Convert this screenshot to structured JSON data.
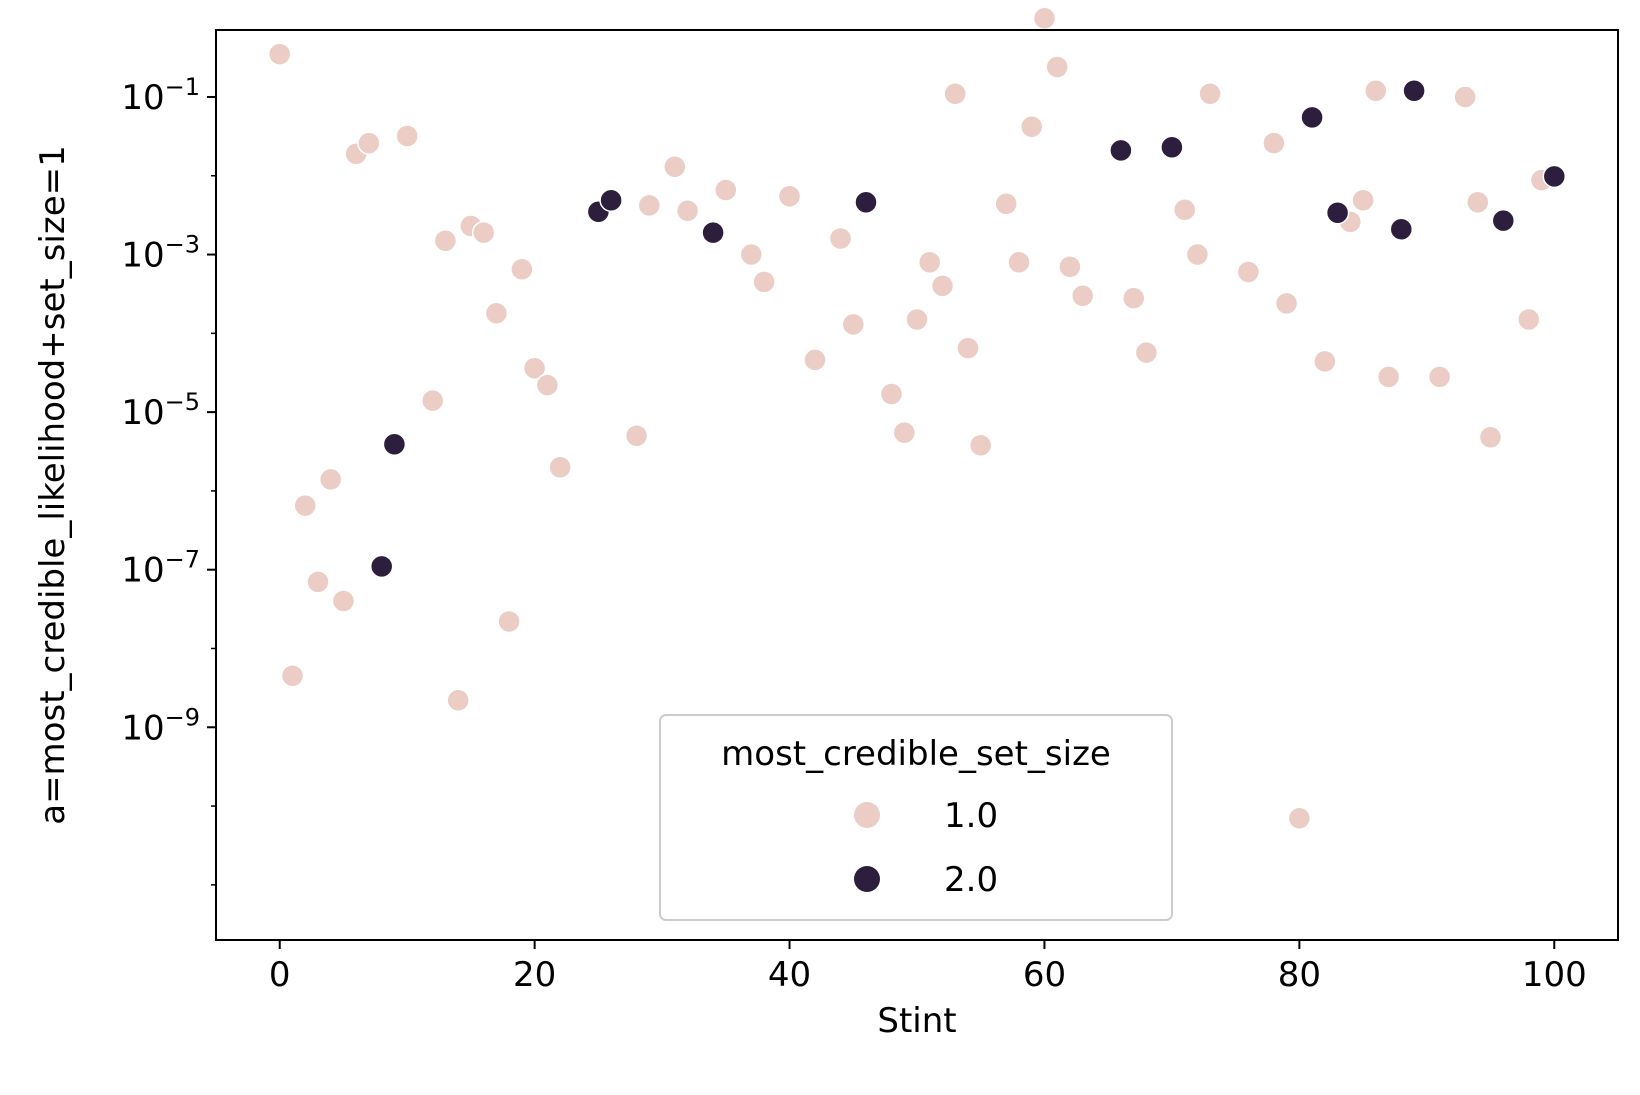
{
  "chart_data": {
    "type": "scatter",
    "title": "",
    "xlabel": "Stint",
    "ylabel": "a=most_credible_likelihood+set_size=1",
    "xlim": [
      -5,
      105
    ],
    "ylim_log10": [
      -11.7,
      -0.15
    ],
    "y_scale": "log",
    "x_ticks": [
      0,
      20,
      40,
      60,
      80,
      100
    ],
    "y_ticks": [
      {
        "exp": -9,
        "base": "10",
        "label": "−9"
      },
      {
        "exp": -7,
        "base": "10",
        "label": "−7"
      },
      {
        "exp": -5,
        "base": "10",
        "label": "−5"
      },
      {
        "exp": -3,
        "base": "10",
        "label": "−3"
      },
      {
        "exp": -1,
        "base": "10",
        "label": "−1"
      }
    ],
    "grid": false,
    "legend": {
      "title": "most_credible_set_size",
      "placement": "lower-center",
      "entries": [
        {
          "label": "1.0",
          "color": "#ebcdc5"
        },
        {
          "label": "2.0",
          "color": "#2d1e3e"
        }
      ]
    },
    "series": [
      {
        "name": "1.0",
        "color": "#ebcdc5",
        "points": [
          [
            0,
            0.35
          ],
          [
            1,
            4.5e-09
          ],
          [
            2,
            6.5e-07
          ],
          [
            3,
            7e-08
          ],
          [
            4,
            1.4e-06
          ],
          [
            5,
            4e-08
          ],
          [
            6,
            0.019
          ],
          [
            7,
            0.026
          ],
          [
            10,
            0.032
          ],
          [
            12,
            1.4e-05
          ],
          [
            13,
            0.0015
          ],
          [
            14,
            2.2e-09
          ],
          [
            15,
            0.0023
          ],
          [
            16,
            0.0019
          ],
          [
            17,
            0.00018
          ],
          [
            18,
            2.2e-08
          ],
          [
            19,
            0.00065
          ],
          [
            20,
            3.6e-05
          ],
          [
            21,
            2.2e-05
          ],
          [
            22,
            2e-06
          ],
          [
            28,
            5e-06
          ],
          [
            29,
            0.0042
          ],
          [
            31,
            0.013
          ],
          [
            32,
            0.0036
          ],
          [
            35,
            0.0066
          ],
          [
            37,
            0.001
          ],
          [
            38,
            0.00045
          ],
          [
            40,
            0.0055
          ],
          [
            42,
            4.6e-05
          ],
          [
            44,
            0.0016
          ],
          [
            45,
            0.00013
          ],
          [
            48,
            1.7e-05
          ],
          [
            49,
            5.5e-06
          ],
          [
            50,
            0.00015
          ],
          [
            51,
            0.0008
          ],
          [
            52,
            0.0004
          ],
          [
            53,
            0.11
          ],
          [
            54,
            6.5e-05
          ],
          [
            55,
            3.8e-06
          ],
          [
            57,
            0.0044
          ],
          [
            58,
            0.0008
          ],
          [
            59,
            0.042
          ],
          [
            60,
            1.0
          ],
          [
            61,
            0.24
          ],
          [
            62,
            0.0007
          ],
          [
            63,
            0.0003
          ],
          [
            67,
            0.00028
          ],
          [
            68,
            5.7e-05
          ],
          [
            71,
            0.0037
          ],
          [
            72,
            0.001
          ],
          [
            73,
            0.11
          ],
          [
            76,
            0.0006
          ],
          [
            78,
            0.026
          ],
          [
            79,
            0.00024
          ],
          [
            80,
            7e-11
          ],
          [
            82,
            4.4e-05
          ],
          [
            84,
            0.0026
          ],
          [
            85,
            0.0049
          ],
          [
            86,
            0.12
          ],
          [
            87,
            2.8e-05
          ],
          [
            91,
            2.8e-05
          ],
          [
            93,
            0.1
          ],
          [
            94,
            0.0046
          ],
          [
            95,
            4.8e-06
          ],
          [
            98,
            0.00015
          ],
          [
            99,
            0.0088
          ]
        ]
      },
      {
        "name": "2.0",
        "color": "#2d1e3e",
        "points": [
          [
            8,
            1.1e-07
          ],
          [
            9,
            3.9e-06
          ],
          [
            25,
            0.0035
          ],
          [
            26,
            0.0049
          ],
          [
            34,
            0.0019
          ],
          [
            46,
            0.0046
          ],
          [
            66,
            0.021
          ],
          [
            70,
            0.023
          ],
          [
            81,
            0.055
          ],
          [
            83,
            0.0034
          ],
          [
            88,
            0.0021
          ],
          [
            89,
            0.12
          ],
          [
            96,
            0.0027
          ],
          [
            100,
            0.0098
          ]
        ]
      }
    ]
  }
}
